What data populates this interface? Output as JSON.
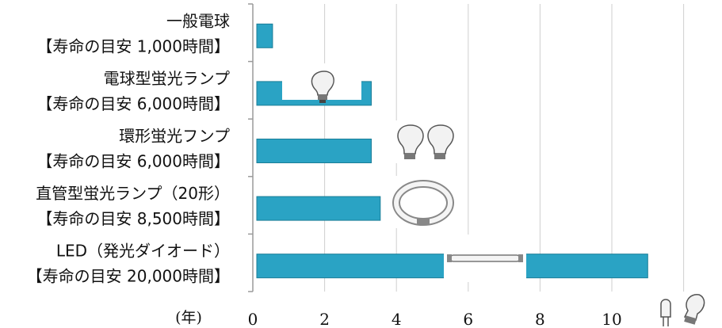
{
  "chart_data": {
    "type": "bar",
    "orientation": "horizontal",
    "categories": [
      [
        "一般電球",
        "【寿命の目安 1,000時間】"
      ],
      [
        "電球型蛍光ランプ",
        "【寿命の目安 6,000時間】"
      ],
      [
        "環形蛍光フンプ",
        "【寿命の目安 6,000時間】"
      ],
      [
        "直管型蛍光ランプ（20形）",
        "【寿命の目安 8,500時間】"
      ],
      [
        "LED（発光ダイオード）",
        "【寿命の目安 20,000時間】"
      ]
    ],
    "values": [
      0.55,
      3.3,
      3.3,
      3.55,
      11.0
    ],
    "xlim": [
      0,
      12
    ],
    "x_ticks": [
      0,
      2,
      4,
      6,
      8,
      10
    ],
    "x_unit_label": "(年)",
    "bar_color": "#2aa3c4",
    "grid": true,
    "icons": [
      "bulb-icon",
      "bulb-pair-icon",
      "circular-fluorescent-icon",
      "straight-tube-icon",
      "led-bulb-icon"
    ]
  }
}
